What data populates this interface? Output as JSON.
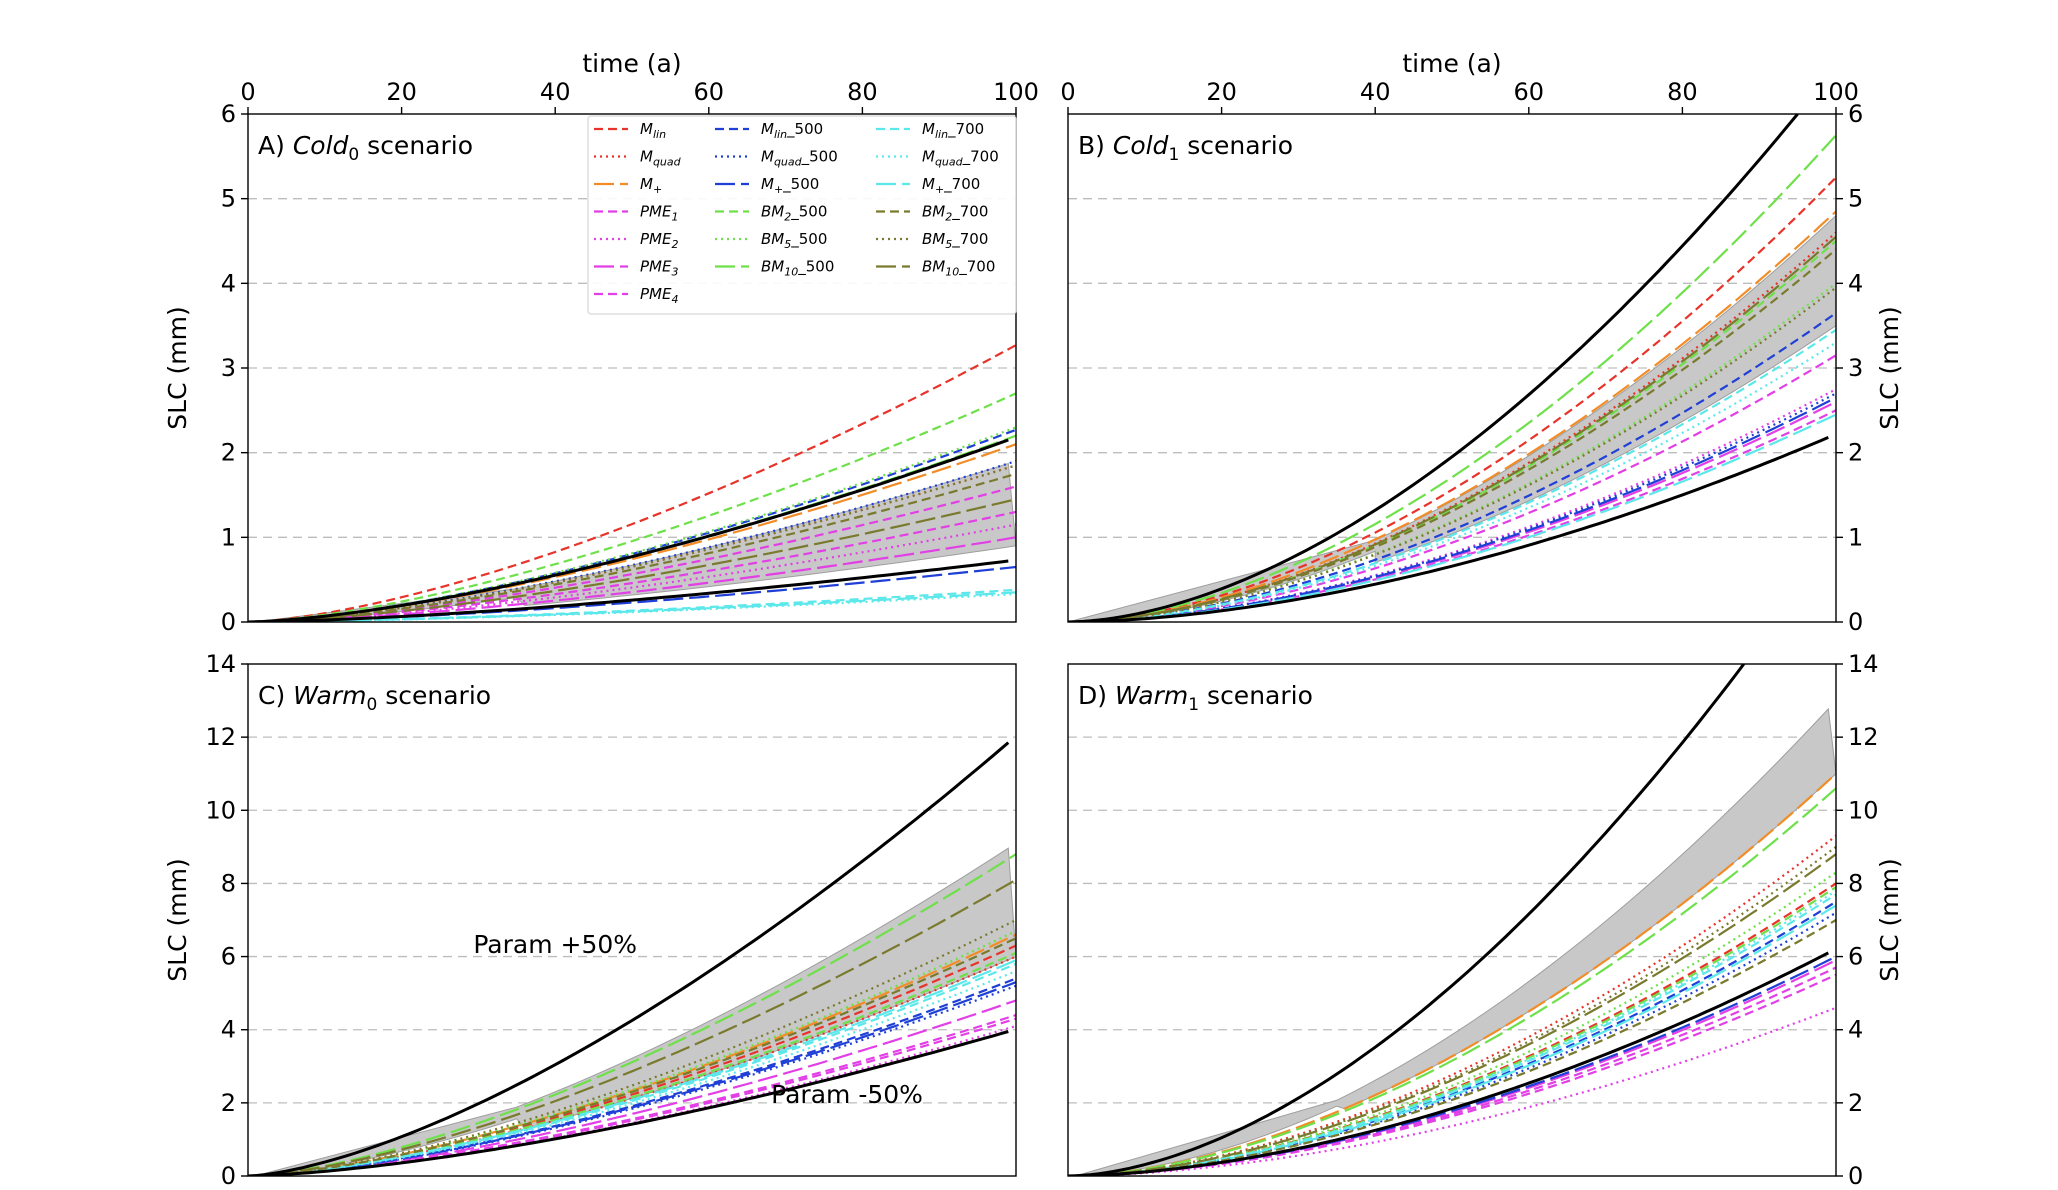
{
  "figure": {
    "x_axis_label": "time (a)",
    "y_axis_label": "SLC (mm)"
  },
  "legend": {
    "columns": [
      [
        {
          "text": "M_lin",
          "base": "M",
          "sub": "lin",
          "suffix": "",
          "color": "#e8332a",
          "dash": "dashed"
        },
        {
          "text": "M_quad",
          "base": "M",
          "sub": "quad",
          "suffix": "",
          "color": "#e8332a",
          "dash": "dotted"
        },
        {
          "text": "M+",
          "base": "M",
          "sub": "+",
          "suffix": "",
          "color": "#f28c28",
          "dash": "longdash"
        },
        {
          "text": "PME1",
          "base": "PME",
          "sub": "1",
          "suffix": "",
          "color": "#e23fe6",
          "dash": "dashed"
        },
        {
          "text": "PME2",
          "base": "PME",
          "sub": "2",
          "suffix": "",
          "color": "#e23fe6",
          "dash": "dotted"
        },
        {
          "text": "PME3",
          "base": "PME",
          "sub": "3",
          "suffix": "",
          "color": "#e23fe6",
          "dash": "longdash"
        },
        {
          "text": "PME4",
          "base": "PME",
          "sub": "4",
          "suffix": "",
          "color": "#e23fe6",
          "dash": "dashed"
        }
      ],
      [
        {
          "text": "M_lin_500",
          "base": "M",
          "sub": "lin",
          "suffix": "_500",
          "color": "#1f3fd6",
          "dash": "dashed"
        },
        {
          "text": "M_quad_500",
          "base": "M",
          "sub": "quad",
          "suffix": "_500",
          "color": "#1f3fd6",
          "dash": "dotted"
        },
        {
          "text": "M+_500",
          "base": "M",
          "sub": "+",
          "suffix": "_500",
          "color": "#1f3fd6",
          "dash": "longdash"
        },
        {
          "text": "BM2_500",
          "base": "BM",
          "sub": "2",
          "suffix": "_500",
          "color": "#6ee04a",
          "dash": "dashed"
        },
        {
          "text": "BM5_500",
          "base": "BM",
          "sub": "5",
          "suffix": "_500",
          "color": "#6ee04a",
          "dash": "dotted"
        },
        {
          "text": "BM10_500",
          "base": "BM",
          "sub": "10",
          "suffix": "_500",
          "color": "#6ee04a",
          "dash": "longdash"
        }
      ],
      [
        {
          "text": "M_lin_700",
          "base": "M",
          "sub": "lin",
          "suffix": "_700",
          "color": "#5ce8ea",
          "dash": "dashed"
        },
        {
          "text": "M_quad_700",
          "base": "M",
          "sub": "quad",
          "suffix": "_700",
          "color": "#5ce8ea",
          "dash": "dotted"
        },
        {
          "text": "M+_700",
          "base": "M",
          "sub": "+",
          "suffix": "_700",
          "color": "#5ce8ea",
          "dash": "longdash"
        },
        {
          "text": "BM2_700",
          "base": "BM",
          "sub": "2",
          "suffix": "_700",
          "color": "#7a7a2e",
          "dash": "dashed"
        },
        {
          "text": "BM5_700",
          "base": "BM",
          "sub": "5",
          "suffix": "_700",
          "color": "#7a7a2e",
          "dash": "dotted"
        },
        {
          "text": "BM10_700",
          "base": "BM",
          "sub": "10",
          "suffix": "_700",
          "color": "#7a7a2e",
          "dash": "longdash"
        }
      ]
    ]
  },
  "chart_data": [
    {
      "type": "line",
      "panel": "A",
      "title": "A) Cold0 scenario",
      "title_prefix": "A) ",
      "title_italic": "Cold",
      "title_sub": "0",
      "title_suffix": " scenario",
      "xlabel": "time (a)",
      "ylabel": "SLC (mm)",
      "xlim": [
        0,
        100
      ],
      "ylim": [
        0,
        6
      ],
      "xticks": [
        0,
        20,
        40,
        60,
        80,
        100
      ],
      "yticks": [
        0,
        1,
        2,
        3,
        4,
        5,
        6
      ],
      "grid": "horizontal dashed",
      "x_axis_position": "top",
      "y_axis_position": "left",
      "has_legend": true,
      "curve_exponent": 1.5,
      "band": {
        "x_start": 35,
        "lower_end": 0.9,
        "upper_end": 1.9
      },
      "series": [
        {
          "name": "M_lin",
          "color": "#e8332a",
          "dash": "dashed",
          "end": 3.27
        },
        {
          "name": "M_quad",
          "color": "#e8332a",
          "dash": "dotted",
          "end": 1.85
        },
        {
          "name": "M+",
          "color": "#f28c28",
          "dash": "longdash",
          "end": 2.1
        },
        {
          "name": "PME1",
          "color": "#e23fe6",
          "dash": "dashed",
          "end": 1.6
        },
        {
          "name": "PME2",
          "color": "#e23fe6",
          "dash": "dotted",
          "end": 1.15
        },
        {
          "name": "PME3",
          "color": "#e23fe6",
          "dash": "longdash",
          "end": 1.0
        },
        {
          "name": "PME4",
          "color": "#e23fe6",
          "dash": "dashed",
          "end": 1.3
        },
        {
          "name": "M_lin_500",
          "color": "#1f3fd6",
          "dash": "dashed",
          "end": 2.27
        },
        {
          "name": "M_quad_500",
          "color": "#1f3fd6",
          "dash": "dotted",
          "end": 1.9
        },
        {
          "name": "M+_500",
          "color": "#1f3fd6",
          "dash": "longdash",
          "end": 0.65
        },
        {
          "name": "BM2_500",
          "color": "#6ee04a",
          "dash": "dashed",
          "end": 2.7
        },
        {
          "name": "BM5_500",
          "color": "#6ee04a",
          "dash": "dotted",
          "end": 2.3
        },
        {
          "name": "BM10_500",
          "color": "#6ee04a",
          "dash": "longdash",
          "end": 2.2
        },
        {
          "name": "M_lin_700",
          "color": "#5ce8ea",
          "dash": "dashed",
          "end": 0.38
        },
        {
          "name": "M_quad_700",
          "color": "#5ce8ea",
          "dash": "dotted",
          "end": 0.33
        },
        {
          "name": "M+_700",
          "color": "#5ce8ea",
          "dash": "longdash",
          "end": 0.35
        },
        {
          "name": "BM2_700",
          "color": "#7a7a2e",
          "dash": "dashed",
          "end": 1.75
        },
        {
          "name": "BM5_700",
          "color": "#7a7a2e",
          "dash": "dotted",
          "end": 1.85
        },
        {
          "name": "BM10_700",
          "color": "#7a7a2e",
          "dash": "longdash",
          "end": 1.45
        },
        {
          "name": "Param +50%",
          "color": "#000000",
          "dash": "solid",
          "end": 2.15,
          "x_end": 99
        },
        {
          "name": "Param -50%",
          "color": "#000000",
          "dash": "solid",
          "end": 0.72,
          "x_end": 99
        }
      ],
      "annotations": []
    },
    {
      "type": "line",
      "panel": "B",
      "title": "B) Cold1 scenario",
      "title_prefix": "B) ",
      "title_italic": "Cold",
      "title_sub": "1",
      "title_suffix": " scenario",
      "xlabel": "time (a)",
      "ylabel": "SLC (mm)",
      "xlim": [
        0,
        100
      ],
      "ylim": [
        0,
        6
      ],
      "xticks": [
        0,
        20,
        40,
        60,
        80,
        100
      ],
      "yticks": [
        0,
        1,
        2,
        3,
        4,
        5,
        6
      ],
      "grid": "horizontal dashed",
      "x_axis_position": "top",
      "y_axis_position": "right",
      "has_legend": false,
      "curve_exponent": 1.75,
      "band": {
        "x_start": 40,
        "lower_end": 3.5,
        "upper_end": 4.8
      },
      "series": [
        {
          "name": "M_lin",
          "color": "#e8332a",
          "dash": "dashed",
          "end": 5.25
        },
        {
          "name": "M_quad",
          "color": "#e8332a",
          "dash": "dotted",
          "end": 4.6
        },
        {
          "name": "M+",
          "color": "#f28c28",
          "dash": "longdash",
          "end": 4.85
        },
        {
          "name": "PME1",
          "color": "#e23fe6",
          "dash": "dashed",
          "end": 3.15
        },
        {
          "name": "PME2",
          "color": "#e23fe6",
          "dash": "dotted",
          "end": 2.75
        },
        {
          "name": "PME3",
          "color": "#e23fe6",
          "dash": "longdash",
          "end": 2.6
        },
        {
          "name": "PME4",
          "color": "#e23fe6",
          "dash": "dashed",
          "end": 2.5
        },
        {
          "name": "M_lin_500",
          "color": "#1f3fd6",
          "dash": "dashed",
          "end": 3.65
        },
        {
          "name": "M_quad_500",
          "color": "#1f3fd6",
          "dash": "dotted",
          "end": 2.7
        },
        {
          "name": "M+_500",
          "color": "#1f3fd6",
          "dash": "longdash",
          "end": 2.65
        },
        {
          "name": "BM2_500",
          "color": "#6ee04a",
          "dash": "dashed",
          "end": 4.5
        },
        {
          "name": "BM5_500",
          "color": "#6ee04a",
          "dash": "dotted",
          "end": 4.0
        },
        {
          "name": "BM10_500",
          "color": "#6ee04a",
          "dash": "longdash",
          "end": 5.75
        },
        {
          "name": "M_lin_700",
          "color": "#5ce8ea",
          "dash": "dashed",
          "end": 3.45
        },
        {
          "name": "M_quad_700",
          "color": "#5ce8ea",
          "dash": "dotted",
          "end": 3.3
        },
        {
          "name": "M+_700",
          "color": "#5ce8ea",
          "dash": "longdash",
          "end": 2.45
        },
        {
          "name": "BM2_700",
          "color": "#7a7a2e",
          "dash": "dashed",
          "end": 4.4
        },
        {
          "name": "BM5_700",
          "color": "#7a7a2e",
          "dash": "dotted",
          "end": 3.95
        },
        {
          "name": "BM10_700",
          "color": "#7a7a2e",
          "dash": "longdash",
          "end": 4.55
        },
        {
          "name": "Param +50%",
          "color": "#000000",
          "dash": "solid",
          "end": 6.0,
          "x_end": 95
        },
        {
          "name": "Param -50%",
          "color": "#000000",
          "dash": "solid",
          "end": 2.18,
          "x_end": 99
        }
      ],
      "annotations": []
    },
    {
      "type": "line",
      "panel": "C",
      "title": "C) Warm0 scenario",
      "title_prefix": "C) ",
      "title_italic": "Warm",
      "title_sub": "0",
      "title_suffix": " scenario",
      "xlabel": "time (a)",
      "ylabel": "SLC (mm)",
      "xlim": [
        0,
        100
      ],
      "ylim": [
        0,
        14
      ],
      "xticks": [
        0,
        20,
        40,
        60,
        80,
        100
      ],
      "yticks": [
        0,
        2,
        4,
        6,
        8,
        10,
        12,
        14
      ],
      "grid": "horizontal dashed",
      "x_axis_position": "none",
      "y_axis_position": "left",
      "has_legend": false,
      "curve_exponent": 1.5,
      "band": {
        "x_start": 35,
        "lower_end": 6.0,
        "upper_end": 9.1
      },
      "series": [
        {
          "name": "M_lin",
          "color": "#e8332a",
          "dash": "dashed",
          "end": 6.3
        },
        {
          "name": "M_quad",
          "color": "#e8332a",
          "dash": "dotted",
          "end": 6.0
        },
        {
          "name": "M+",
          "color": "#f28c28",
          "dash": "longdash",
          "end": 6.6
        },
        {
          "name": "PME1",
          "color": "#e23fe6",
          "dash": "dashed",
          "end": 4.3
        },
        {
          "name": "PME2",
          "color": "#e23fe6",
          "dash": "dotted",
          "end": 4.1
        },
        {
          "name": "PME3",
          "color": "#e23fe6",
          "dash": "longdash",
          "end": 4.8
        },
        {
          "name": "PME4",
          "color": "#e23fe6",
          "dash": "dashed",
          "end": 4.4
        },
        {
          "name": "M_lin_500",
          "color": "#1f3fd6",
          "dash": "dashed",
          "end": 5.4
        },
        {
          "name": "M_quad_500",
          "color": "#1f3fd6",
          "dash": "dotted",
          "end": 5.2
        },
        {
          "name": "M+_500",
          "color": "#1f3fd6",
          "dash": "longdash",
          "end": 5.3
        },
        {
          "name": "BM2_500",
          "color": "#6ee04a",
          "dash": "dashed",
          "end": 6.1
        },
        {
          "name": "BM5_500",
          "color": "#6ee04a",
          "dash": "dotted",
          "end": 6.7
        },
        {
          "name": "BM10_500",
          "color": "#6ee04a",
          "dash": "longdash",
          "end": 8.8
        },
        {
          "name": "M_lin_700",
          "color": "#5ce8ea",
          "dash": "dashed",
          "end": 5.8
        },
        {
          "name": "M_quad_700",
          "color": "#5ce8ea",
          "dash": "dotted",
          "end": 5.6
        },
        {
          "name": "M+_700",
          "color": "#5ce8ea",
          "dash": "longdash",
          "end": 5.9
        },
        {
          "name": "BM2_700",
          "color": "#7a7a2e",
          "dash": "dashed",
          "end": 6.5
        },
        {
          "name": "BM5_700",
          "color": "#7a7a2e",
          "dash": "dotted",
          "end": 7.0
        },
        {
          "name": "BM10_700",
          "color": "#7a7a2e",
          "dash": "longdash",
          "end": 8.1
        },
        {
          "name": "Param +50%",
          "color": "#000000",
          "dash": "solid",
          "end": 11.85,
          "x_end": 99
        },
        {
          "name": "Param -50%",
          "color": "#000000",
          "dash": "solid",
          "end": 3.95,
          "x_end": 99
        }
      ],
      "annotations": [
        {
          "text": "Param +50%",
          "x": 40,
          "y": 6.1
        },
        {
          "text": "Param -50%",
          "x": 78,
          "y": 2.0
        }
      ]
    },
    {
      "type": "line",
      "panel": "D",
      "title": "D) Warm1 scenario",
      "title_prefix": "D) ",
      "title_italic": "Warm",
      "title_sub": "1",
      "title_suffix": " scenario",
      "xlabel": "time (a)",
      "ylabel": "SLC (mm)",
      "xlim": [
        0,
        100
      ],
      "ylim": [
        0,
        14
      ],
      "xticks": [
        0,
        20,
        40,
        60,
        80,
        100
      ],
      "yticks": [
        0,
        2,
        4,
        6,
        8,
        10,
        12,
        14
      ],
      "grid": "horizontal dashed",
      "x_axis_position": "none",
      "y_axis_position": "right",
      "has_legend": false,
      "curve_exponent": 1.75,
      "band": {
        "x_start": 35,
        "lower_end": 11.0,
        "upper_end": 13.0
      },
      "series": [
        {
          "name": "M_lin",
          "color": "#e8332a",
          "dash": "dashed",
          "end": 8.0
        },
        {
          "name": "M_quad",
          "color": "#e8332a",
          "dash": "dotted",
          "end": 9.3
        },
        {
          "name": "M+",
          "color": "#f28c28",
          "dash": "longdash",
          "end": 11.0
        },
        {
          "name": "PME1",
          "color": "#e23fe6",
          "dash": "dashed",
          "end": 5.7
        },
        {
          "name": "PME2",
          "color": "#e23fe6",
          "dash": "dotted",
          "end": 4.6
        },
        {
          "name": "PME3",
          "color": "#e23fe6",
          "dash": "longdash",
          "end": 5.9
        },
        {
          "name": "PME4",
          "color": "#e23fe6",
          "dash": "dashed",
          "end": 5.5
        },
        {
          "name": "M_lin_500",
          "color": "#1f3fd6",
          "dash": "dashed",
          "end": 7.5
        },
        {
          "name": "M_quad_500",
          "color": "#1f3fd6",
          "dash": "dotted",
          "end": 7.2
        },
        {
          "name": "M+_500",
          "color": "#1f3fd6",
          "dash": "longdash",
          "end": 6.0
        },
        {
          "name": "BM2_500",
          "color": "#6ee04a",
          "dash": "dashed",
          "end": 7.9
        },
        {
          "name": "BM5_500",
          "color": "#6ee04a",
          "dash": "dotted",
          "end": 8.3
        },
        {
          "name": "BM10_500",
          "color": "#6ee04a",
          "dash": "longdash",
          "end": 10.6
        },
        {
          "name": "M_lin_700",
          "color": "#5ce8ea",
          "dash": "dashed",
          "end": 7.7
        },
        {
          "name": "M_quad_700",
          "color": "#5ce8ea",
          "dash": "dotted",
          "end": 7.8
        },
        {
          "name": "M+_700",
          "color": "#5ce8ea",
          "dash": "longdash",
          "end": 7.4
        },
        {
          "name": "BM2_700",
          "color": "#7a7a2e",
          "dash": "dashed",
          "end": 7.0
        },
        {
          "name": "BM5_700",
          "color": "#7a7a2e",
          "dash": "dotted",
          "end": 9.0
        },
        {
          "name": "BM10_700",
          "color": "#7a7a2e",
          "dash": "longdash",
          "end": 8.8
        },
        {
          "name": "Param +50%",
          "color": "#000000",
          "dash": "solid",
          "end": 14.0,
          "x_end": 88
        },
        {
          "name": "Param -50%",
          "color": "#000000",
          "dash": "solid",
          "end": 6.1,
          "x_end": 99
        }
      ],
      "annotations": []
    }
  ]
}
